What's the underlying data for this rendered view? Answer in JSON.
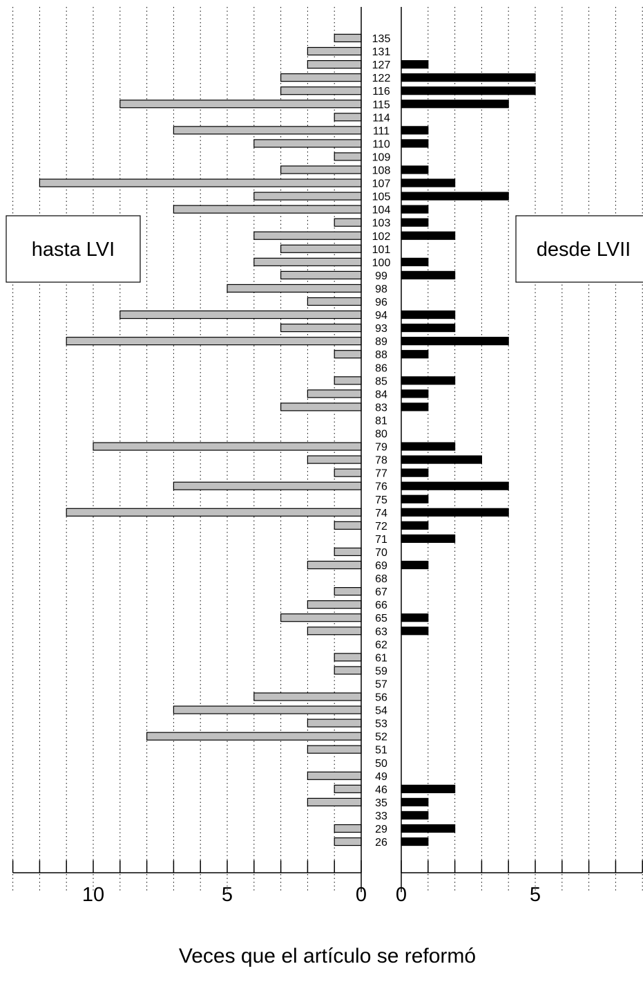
{
  "chart_data": {
    "type": "bar",
    "orientation": "horizontal",
    "xlabel": "Veces que el artículo se reformó",
    "left_panel": {
      "label": "hasta LVI",
      "xlim": [
        0,
        13
      ],
      "major_ticks": [
        10,
        5,
        0
      ],
      "tick_labels": [
        "10",
        "5",
        "0"
      ],
      "bar_color": "#c0c0c0"
    },
    "right_panel": {
      "label": "desde LVII",
      "xlim": [
        0,
        9
      ],
      "major_ticks": [
        0,
        5
      ],
      "tick_labels": [
        "0",
        "5"
      ],
      "bar_color": "#000000"
    },
    "categories": [
      "135",
      "131",
      "127",
      "122",
      "116",
      "115",
      "114",
      "111",
      "110",
      "109",
      "108",
      "107",
      "105",
      "104",
      "103",
      "102",
      "101",
      "100",
      "99",
      "98",
      "96",
      "94",
      "93",
      "89",
      "88",
      "86",
      "85",
      "84",
      "83",
      "81",
      "80",
      "79",
      "78",
      "77",
      "76",
      "75",
      "74",
      "72",
      "71",
      "70",
      "69",
      "68",
      "67",
      "66",
      "65",
      "63",
      "62",
      "61",
      "59",
      "57",
      "56",
      "54",
      "53",
      "52",
      "51",
      "50",
      "49",
      "46",
      "35",
      "33",
      "29",
      "26"
    ],
    "series": [
      {
        "name": "hasta LVI",
        "values": [
          1,
          2,
          2,
          3,
          3,
          9,
          1,
          7,
          4,
          1,
          3,
          12,
          4,
          7,
          1,
          4,
          3,
          4,
          3,
          5,
          2,
          9,
          3,
          11,
          1,
          0,
          1,
          2,
          3,
          0,
          0,
          10,
          2,
          1,
          7,
          0,
          11,
          1,
          0,
          1,
          2,
          0,
          1,
          2,
          3,
          2,
          0,
          1,
          1,
          0,
          4,
          7,
          2,
          8,
          2,
          0,
          2,
          1,
          2,
          0,
          1,
          1
        ]
      },
      {
        "name": "desde LVII",
        "values": [
          0,
          0,
          1,
          5,
          5,
          4,
          0,
          1,
          1,
          0,
          1,
          2,
          4,
          1,
          1,
          2,
          0,
          1,
          2,
          0,
          0,
          2,
          2,
          4,
          1,
          0,
          2,
          1,
          1,
          0,
          0,
          2,
          3,
          1,
          4,
          1,
          4,
          1,
          2,
          0,
          1,
          0,
          0,
          0,
          1,
          1,
          0,
          0,
          0,
          0,
          0,
          0,
          0,
          0,
          0,
          0,
          0,
          2,
          1,
          1,
          2,
          1
        ]
      }
    ],
    "grid": true
  }
}
